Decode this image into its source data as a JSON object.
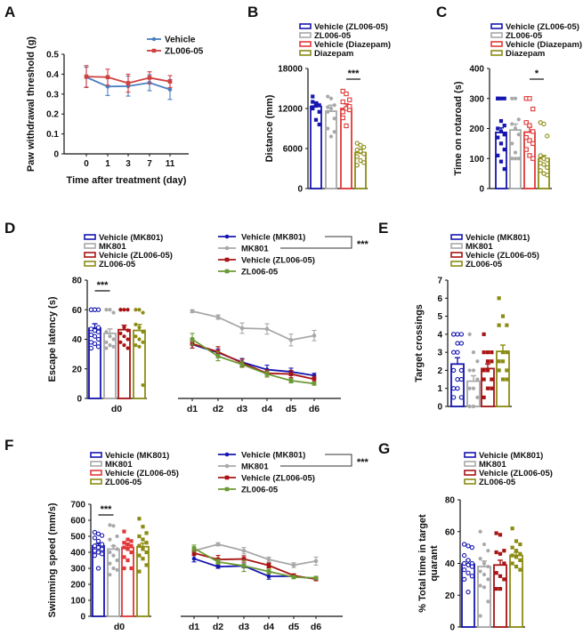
{
  "panels": {
    "A": {
      "letter": "A"
    },
    "B": {
      "letter": "B"
    },
    "C": {
      "letter": "C"
    },
    "D": {
      "letter": "D"
    },
    "E": {
      "letter": "E"
    },
    "F": {
      "letter": "F"
    },
    "G": {
      "letter": "G"
    }
  },
  "colors": {
    "A_vehicle": "#4a7fc0",
    "A_zl": "#d04040",
    "blue": "#1616b0",
    "gray": "#a8a8a8",
    "red": "#e23838",
    "darkred": "#a81414",
    "olive": "#8c8c14",
    "green": "#6b9a35"
  },
  "chart_data": [
    {
      "id": "A",
      "type": "line",
      "ylabel": "Paw withdrawal threshold (g)",
      "xlabel": "Time after treatment (day)",
      "categories": [
        "0",
        "1",
        "3",
        "7",
        "11"
      ],
      "ylim": [
        0,
        0.5
      ],
      "yticks": [
        "0",
        "0.1",
        "0.2",
        "0.3",
        "0.4",
        "0.5"
      ],
      "ytick_values": [
        0,
        0.1,
        0.2,
        0.3,
        0.4,
        0.5
      ],
      "legend": "top-right",
      "series": [
        {
          "name": "Vehicle",
          "values": [
            0.385,
            0.338,
            0.34,
            0.357,
            0.323
          ],
          "sem": [
            0.05,
            0.045,
            0.05,
            0.04,
            0.05
          ]
        },
        {
          "name": "ZL006-05",
          "values": [
            0.388,
            0.385,
            0.355,
            0.382,
            0.363
          ],
          "sem": [
            0.055,
            0.04,
            0.045,
            0.03,
            0.03
          ]
        }
      ]
    },
    {
      "id": "B",
      "type": "bar",
      "ylabel": "Distance (mm)",
      "ylim": [
        0,
        18000
      ],
      "yticks": [
        "0",
        "6000",
        "12000",
        "18000"
      ],
      "ytick_values": [
        0,
        6000,
        12000,
        18000
      ],
      "categories": [
        "Vehicle (ZL006-05)",
        "ZL006-05",
        "Vehicle (Diazepam)",
        "Diazepam"
      ],
      "values": [
        12300,
        11600,
        12000,
        5400
      ],
      "sem": [
        600,
        900,
        700,
        500
      ],
      "points": [
        [
          13800,
          12800,
          12500,
          12200,
          12400,
          11500,
          13000,
          10300,
          9600,
          12000,
          12600
        ],
        [
          13800,
          13500,
          12500,
          11500,
          12000,
          10500,
          9000,
          7800,
          8500,
          12200
        ],
        [
          14600,
          14200,
          13300,
          13000,
          12000,
          11800,
          10600,
          9400,
          12300,
          11500
        ],
        [
          6800,
          6500,
          6200,
          5800,
          5500,
          5200,
          4800,
          4200,
          3900,
          3500,
          5600
        ]
      ],
      "significance": {
        "label": "***",
        "between": [
          2,
          3
        ]
      }
    },
    {
      "id": "C",
      "type": "bar",
      "ylabel": "Time on rotaroad (s)",
      "ylim": [
        0,
        400
      ],
      "yticks": [
        "0",
        "100",
        "200",
        "300",
        "400"
      ],
      "ytick_values": [
        0,
        100,
        200,
        300,
        400
      ],
      "categories": [
        "Vehicle (ZL006-05)",
        "ZL006-05",
        "Vehicle (Diazepam)",
        "Diazepam"
      ],
      "values": [
        187,
        195,
        188,
        100
      ],
      "sem": [
        15,
        20,
        18,
        10
      ],
      "points": [
        [
          300,
          300,
          300,
          300,
          225,
          210,
          200,
          190,
          180,
          170,
          150,
          130,
          110,
          90,
          65
        ],
        [
          300,
          300,
          230,
          215,
          200,
          180,
          150,
          120,
          100,
          100,
          100
        ],
        [
          300,
          300,
          265,
          220,
          210,
          190,
          170,
          160,
          150,
          130,
          110,
          100
        ],
        [
          220,
          215,
          175,
          110,
          100,
          95,
          85,
          80,
          70,
          60,
          50,
          45
        ]
      ],
      "significance": {
        "label": "*",
        "between": [
          2,
          3
        ]
      }
    },
    {
      "id": "D",
      "type": "bar+line",
      "ylabel": "Escape latency (s)",
      "ylim": [
        0,
        80
      ],
      "yticks": [
        "0",
        "20",
        "40",
        "60",
        "80"
      ],
      "ytick_values": [
        0,
        20,
        40,
        60,
        80
      ],
      "bar_category": "d0",
      "categories": [
        "Vehicle (MK801)",
        "MK801",
        "Vehicle (ZL006-05)",
        "ZL006-05"
      ],
      "values": [
        47.5,
        44,
        46.5,
        46
      ],
      "sem": [
        3,
        3,
        3,
        4
      ],
      "points": [
        [
          60,
          60,
          60,
          60,
          60,
          48,
          47,
          46,
          45,
          43,
          42,
          40,
          38,
          37,
          35,
          34
        ],
        [
          60,
          60,
          58,
          45,
          42,
          40,
          38,
          36,
          35,
          34
        ],
        [
          60,
          60,
          60,
          60,
          48,
          46,
          44,
          42,
          40,
          38,
          36,
          34
        ],
        [
          60,
          60,
          58,
          50,
          48,
          45,
          42,
          40,
          38,
          36,
          35,
          9
        ]
      ],
      "x": [
        "d1",
        "d2",
        "d3",
        "d4",
        "d5",
        "d6"
      ],
      "series": [
        {
          "name": "Vehicle (MK801)",
          "values": [
            36.5,
            31,
            24.5,
            19.5,
            18,
            15.5
          ],
          "sem": [
            2.5,
            2.5,
            2.5,
            3,
            2.5,
            1.5
          ]
        },
        {
          "name": "MK801",
          "values": [
            59,
            55,
            47.5,
            47,
            39.5,
            42.5
          ],
          "sem": [
            1,
            1.5,
            3.5,
            3.5,
            4,
            3.5
          ]
        },
        {
          "name": "Vehicle (ZL006-05)",
          "values": [
            37,
            31.5,
            24,
            17,
            16.5,
            13
          ],
          "sem": [
            3,
            3.5,
            2.5,
            2.5,
            2.5,
            2
          ]
        },
        {
          "name": "ZL006-05",
          "values": [
            40,
            28.5,
            23,
            16.5,
            12,
            10
          ],
          "sem": [
            4,
            3,
            2,
            2,
            1.5,
            1
          ]
        }
      ],
      "significance": {
        "label": "***",
        "between": [
          0,
          1
        ]
      }
    },
    {
      "id": "E",
      "type": "bar",
      "ylabel": "Target crossings",
      "ylim": [
        0,
        7
      ],
      "yticks": [
        "0",
        "1",
        "2",
        "3",
        "4",
        "5",
        "6",
        "7"
      ],
      "ytick_values": [
        0,
        1,
        2,
        3,
        4,
        5,
        6,
        7
      ],
      "categories": [
        "Vehicle (MK801)",
        "MK801",
        "Vehicle (ZL006-05)",
        "ZL006-05"
      ],
      "values": [
        2.35,
        1.4,
        2.1,
        3.05
      ],
      "sem": [
        0.35,
        0.3,
        0.25,
        0.35
      ],
      "points": [
        [
          4,
          4,
          4,
          4,
          3.5,
          3.5,
          3,
          3,
          2,
          2,
          1.5,
          1.5,
          1,
          1,
          0.5,
          0.5
        ],
        [
          4,
          3,
          2.5,
          2,
          2,
          1.5,
          1,
          1,
          0.5,
          0,
          0
        ],
        [
          4,
          3,
          3,
          3,
          2.5,
          2.5,
          2,
          2,
          1.5,
          1.5,
          1,
          1,
          0.5
        ],
        [
          6,
          5,
          4.5,
          4.5,
          3,
          3,
          2.5,
          2.5,
          2,
          2,
          1.5,
          1.5
        ]
      ]
    },
    {
      "id": "F",
      "type": "bar+line",
      "ylabel": "Swimming speed (mm/s)",
      "ylim": [
        0,
        700
      ],
      "yticks": [
        "0",
        "100",
        "200",
        "300",
        "400",
        "500",
        "600",
        "700"
      ],
      "ytick_values": [
        0,
        100,
        200,
        300,
        400,
        500,
        600,
        700
      ],
      "bar_category": "d0",
      "categories": [
        "Vehicle (MK801)",
        "MK801",
        "Vehicle (ZL006-05)",
        "ZL006-05"
      ],
      "values": [
        440,
        420,
        430,
        435
      ],
      "sem": [
        15,
        20,
        18,
        22
      ],
      "points": [
        [
          525,
          515,
          505,
          490,
          470,
          450,
          440,
          430,
          420,
          410,
          400,
          390,
          380,
          300
        ],
        [
          570,
          565,
          500,
          480,
          440,
          420,
          400,
          380,
          350,
          330,
          300,
          290,
          260
        ],
        [
          530,
          480,
          470,
          460,
          450,
          440,
          430,
          420,
          400,
          370,
          350,
          300,
          300
        ],
        [
          610,
          560,
          520,
          500,
          480,
          460,
          440,
          420,
          400,
          380,
          360,
          320,
          280
        ]
      ],
      "x": [
        "d1",
        "d2",
        "d3",
        "d4",
        "d5",
        "d6"
      ],
      "series": [
        {
          "name": "Vehicle (MK801)",
          "values": [
            360,
            310,
            315,
            250,
            250,
            235
          ],
          "sem": [
            20,
            10,
            12,
            18,
            10,
            8
          ]
        },
        {
          "name": "MK801",
          "values": [
            410,
            450,
            410,
            355,
            320,
            345
          ],
          "sem": [
            15,
            10,
            20,
            15,
            15,
            25
          ]
        },
        {
          "name": "Vehicle (ZL006-05)",
          "values": [
            395,
            355,
            358,
            318,
            255,
            232
          ],
          "sem": [
            15,
            25,
            20,
            15,
            10,
            8
          ]
        },
        {
          "name": "ZL006-05",
          "values": [
            425,
            340,
            315,
            280,
            245,
            240
          ],
          "sem": [
            20,
            15,
            35,
            15,
            10,
            10
          ]
        }
      ],
      "significance": {
        "label": "***",
        "between": [
          0,
          1
        ]
      }
    },
    {
      "id": "G",
      "type": "bar",
      "ylabel": "% Total time in target quarant",
      "ylabel_lines": [
        "% Total time in target",
        "quarant"
      ],
      "ylim": [
        0,
        80
      ],
      "yticks": [
        "0",
        "20",
        "40",
        "60",
        "80"
      ],
      "ytick_values": [
        0,
        20,
        40,
        60,
        80
      ],
      "categories": [
        "Vehicle (MK801)",
        "MK801",
        "Vehicle (ZL006-05)",
        "ZL006-05"
      ],
      "values": [
        39.5,
        38,
        39,
        45
      ],
      "sem": [
        2.5,
        3.5,
        3,
        2
      ],
      "points": [
        [
          52,
          51,
          50,
          45,
          42,
          40,
          40,
          39,
          38,
          36,
          34,
          32,
          30,
          22
        ],
        [
          60,
          52,
          48,
          43,
          40,
          38,
          35,
          33,
          30,
          26,
          25,
          16,
          7
        ],
        [
          59,
          58,
          48,
          47,
          46,
          40,
          34,
          32,
          30,
          24,
          24
        ],
        [
          62,
          54,
          52,
          50,
          48,
          46,
          45,
          44,
          42,
          40,
          38,
          36
        ]
      ]
    }
  ]
}
